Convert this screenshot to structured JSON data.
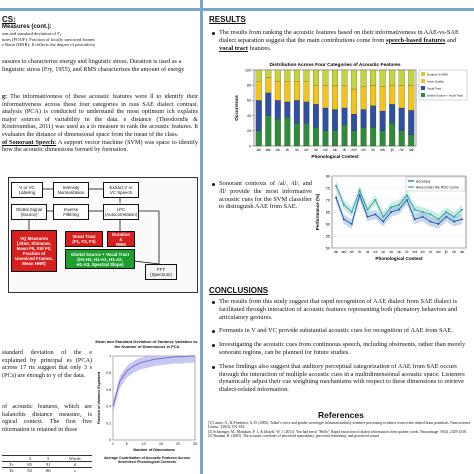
{
  "left": {
    "heading_fragment": "CS:",
    "measures": [
      "Measures (cont.):",
      "ean and standard deviation of F₀",
      "tures (FOUF): Fraction of locally unvoiced frames",
      "e Ratio (HNR): It reflects the degree of periodicity"
    ],
    "prose1": "easures to characterize energy and linguistic stress. Duration is used as a linguistic stress (Fry, 1955), and RMS characterizes the amount of energy",
    "prose2_runin": "g:",
    "prose2": " The informativeness of these acoustic features were ll to identify their informativeness across these four categories in rsus SAE dialect contrast. analysis (PCA) is conducted to understand the most optimum ich explains major sources of variability in the data. e distance (Theodoridis & Koutroumbas, 2011) was used as a to measure to rank the acoustic features. It evaluates the distance of dimensional space from the mean of the class.",
    "svm_label": "of Sonorant Speech:",
    "svm_text": " A support vector machine (SVM) was space to identify how the acoustic dimensions formed by formation.",
    "diagram": {
      "v_cv": "V or VC\nLabeling",
      "intensity": "Intensity\nNormalization",
      "extract": "Extract V or\nVC Speech",
      "glottal_signal": "Glottal Signal\n(Source)",
      "inverse": "Inverse\nFiltering",
      "lpc": "LPC\n(Autocorrelation)",
      "vq": "VQ Measures\n(Jitter, Shimmer,\nMean F0, Std F0,\nFraction of\nUnvoiced Frames,\nMean HNR)",
      "vocal_tract": "Vocal Tract\n(F1, F2, F3)",
      "duration": "Duration\n&\nRMS",
      "glottal_vocal": "Glottal Source + Vocal Tract\n(H1-H2, H1-A1, H1-A2,\nH1-A3, Spectral Slope)",
      "fft": "FFT\n(Spectrum)"
    },
    "prose3": "standard deviation of the e explained by principal es (PCA) across 17 rts suggest that only 3 s (PCs) are enough to y of the data.",
    "prose4": "of acoustic features, which are halanobis distance measure, is ogical context. The first five nformation is retained in these",
    "table_header": [
      "",
      "3",
      "5",
      "Words"
    ],
    "table_rows": [
      [
        "Tr",
        "85",
        "91",
        "d"
      ],
      [
        "Te",
        "82",
        "86",
        "s"
      ]
    ],
    "pca_chart_text": {
      "title": "Mean and Standard Deviation of Variance Variation vs. the Number of Dimensions in PCA",
      "legend": "Average Contribution of Acoustic Features Across Seventeen Phonological Contexts"
    }
  },
  "right": {
    "results_heading": "RESULTS",
    "bullet1": "The results from ranking the acoustic features based on their informativeness in AAE-vs-SAE dialect separation suggest that the main contributions come from ",
    "bullet1_em1": "speech-based features",
    "bullet1_mid": " and ",
    "bullet1_em2": "vocal tract",
    "bullet1_end": " features.",
    "bullet2": "Sonorant contexts of /al/, /il/, and /ll/ provide the most informative acoustic cues for the SVM classifier to distinguish AAE from SAE.",
    "conclusions_heading": "CONCLUSIONS",
    "conclusions": [
      "The results from this study suggest that rapid recognition of AAE dialect from SAE dialect is facilitated through interaction of acoustic features representing both phonatory behaviors and articulatory gestures.",
      "Formants in V and VC provide substantial acoustic cues for recognition of AAE from SAE.",
      "Investigating the acoustic cues from continuous speech, including obstruents, rather than merely sonorant regions, can be planned for future studies.",
      "These findings also suggest that auditory perceptual categorization of AAE from SAE occurs through the interaction of multiple acoustic cues in a multidimensional acoustic space. Listeners dynamically adjust their cue weighting mechanisms with respect to these dimensions to retrieve dialect-related information."
    ],
    "references_heading": "References",
    "references": [
      "[1] Latner, A., & Friederici, A. D. (2005). Talker's voice and gender stereotype in human auditory sentence processing-evidence from event-related brain potentials. Neuroscience Letters, 339(3), 191-194.",
      "[2] Scharinger, M., Monahan, P. J., & Idsardi, W. J. (2011). You had me at \"Hello\": Rapid extraction of dialect information from spoken words. Neuroimage, 56(4), 2329-2338.",
      "[3] Shaman, R. (2005). The acoustic correlates of perceived masculinity, perceived femininity, and perceived sexual"
    ]
  },
  "chart_data": [
    {
      "type": "bar",
      "title": "Distribution Across Four Categories of Acoustic Features",
      "xlabel": "Phonological Context",
      "ylabel": "Occurrence",
      "ylim": [
        0,
        100
      ],
      "categories": [
        "/al/",
        "/æl/",
        "/ɑl/",
        "/il/",
        "/ɪl/",
        "/ɛl/",
        "/ɔl/",
        "/ʊl/",
        "/ul/",
        "/ll/",
        "/ml/",
        "/nl/",
        "/rl/",
        "/wl/",
        "/jl/",
        "/vl/",
        "/øl/"
      ],
      "series": [
        {
          "name": "Glottal Source + Vocal Tract",
          "color": "#2e8b3a",
          "values": [
            20,
            40,
            35,
            38,
            30,
            30,
            25,
            20,
            20,
            28,
            20,
            24,
            25,
            20,
            30,
            20,
            15
          ]
        },
        {
          "name": "Vocal Tract",
          "color": "#2f4fa0",
          "values": [
            40,
            30,
            25,
            20,
            30,
            28,
            30,
            30,
            28,
            22,
            22,
            24,
            28,
            26,
            25,
            30,
            32
          ]
        },
        {
          "name": "Voice Quality",
          "color": "#f0c419",
          "values": [
            25,
            20,
            25,
            27,
            25,
            27,
            25,
            30,
            32,
            30,
            33,
            30,
            27,
            32,
            25,
            30,
            33
          ]
        },
        {
          "name": "Duration & RMS",
          "color": "#c7d33a",
          "values": [
            15,
            10,
            15,
            15,
            15,
            15,
            20,
            20,
            20,
            20,
            25,
            22,
            20,
            22,
            20,
            20,
            20
          ]
        }
      ]
    },
    {
      "type": "line",
      "xlabel": "Phonological Context",
      "ylabel": "Performance (%)",
      "ylim": [
        50,
        80
      ],
      "yticks": [
        50,
        55,
        60,
        65,
        70,
        75,
        80
      ],
      "x": [
        "/al/",
        "/æl/",
        "/ɑl/",
        "/il/",
        "/ɪl/",
        "/ɛl/",
        "/ɔl/",
        "/ʊl/",
        "/ul/",
        "/ll/",
        "/ml/",
        "/nl/",
        "/rl/",
        "/wl/",
        "/jl/",
        "/vl/",
        "/øl/"
      ],
      "series": [
        {
          "name": "Accuracy",
          "color": "#1f5aa6",
          "values": [
            71,
            62,
            60,
            72,
            63,
            64,
            61,
            65,
            66,
            70,
            62,
            63,
            61,
            60,
            63,
            61,
            62
          ]
        },
        {
          "name": "Area Under the ROC Curve",
          "color": "#2fa59a",
          "values": [
            76,
            68,
            65,
            74,
            66,
            70,
            63,
            67,
            68,
            72,
            66,
            65,
            64,
            62,
            65,
            63,
            66
          ]
        }
      ]
    },
    {
      "type": "area",
      "xlabel": "Number of Dimensions",
      "ylabel": "Fraction of Variance Explained",
      "ylim": [
        0,
        1
      ],
      "x": [
        1,
        3,
        5,
        7,
        9,
        11,
        13,
        15,
        17,
        19,
        21,
        23,
        25
      ],
      "series": [
        {
          "name": "Average Contribution of Acoustic Features Across Seventeen Phonological Contexts",
          "color": "#6a6ad0",
          "values": [
            0.4,
            0.7,
            0.82,
            0.88,
            0.92,
            0.94,
            0.96,
            0.97,
            0.98,
            0.99,
            0.99,
            1.0,
            1.0
          ]
        }
      ]
    }
  ]
}
